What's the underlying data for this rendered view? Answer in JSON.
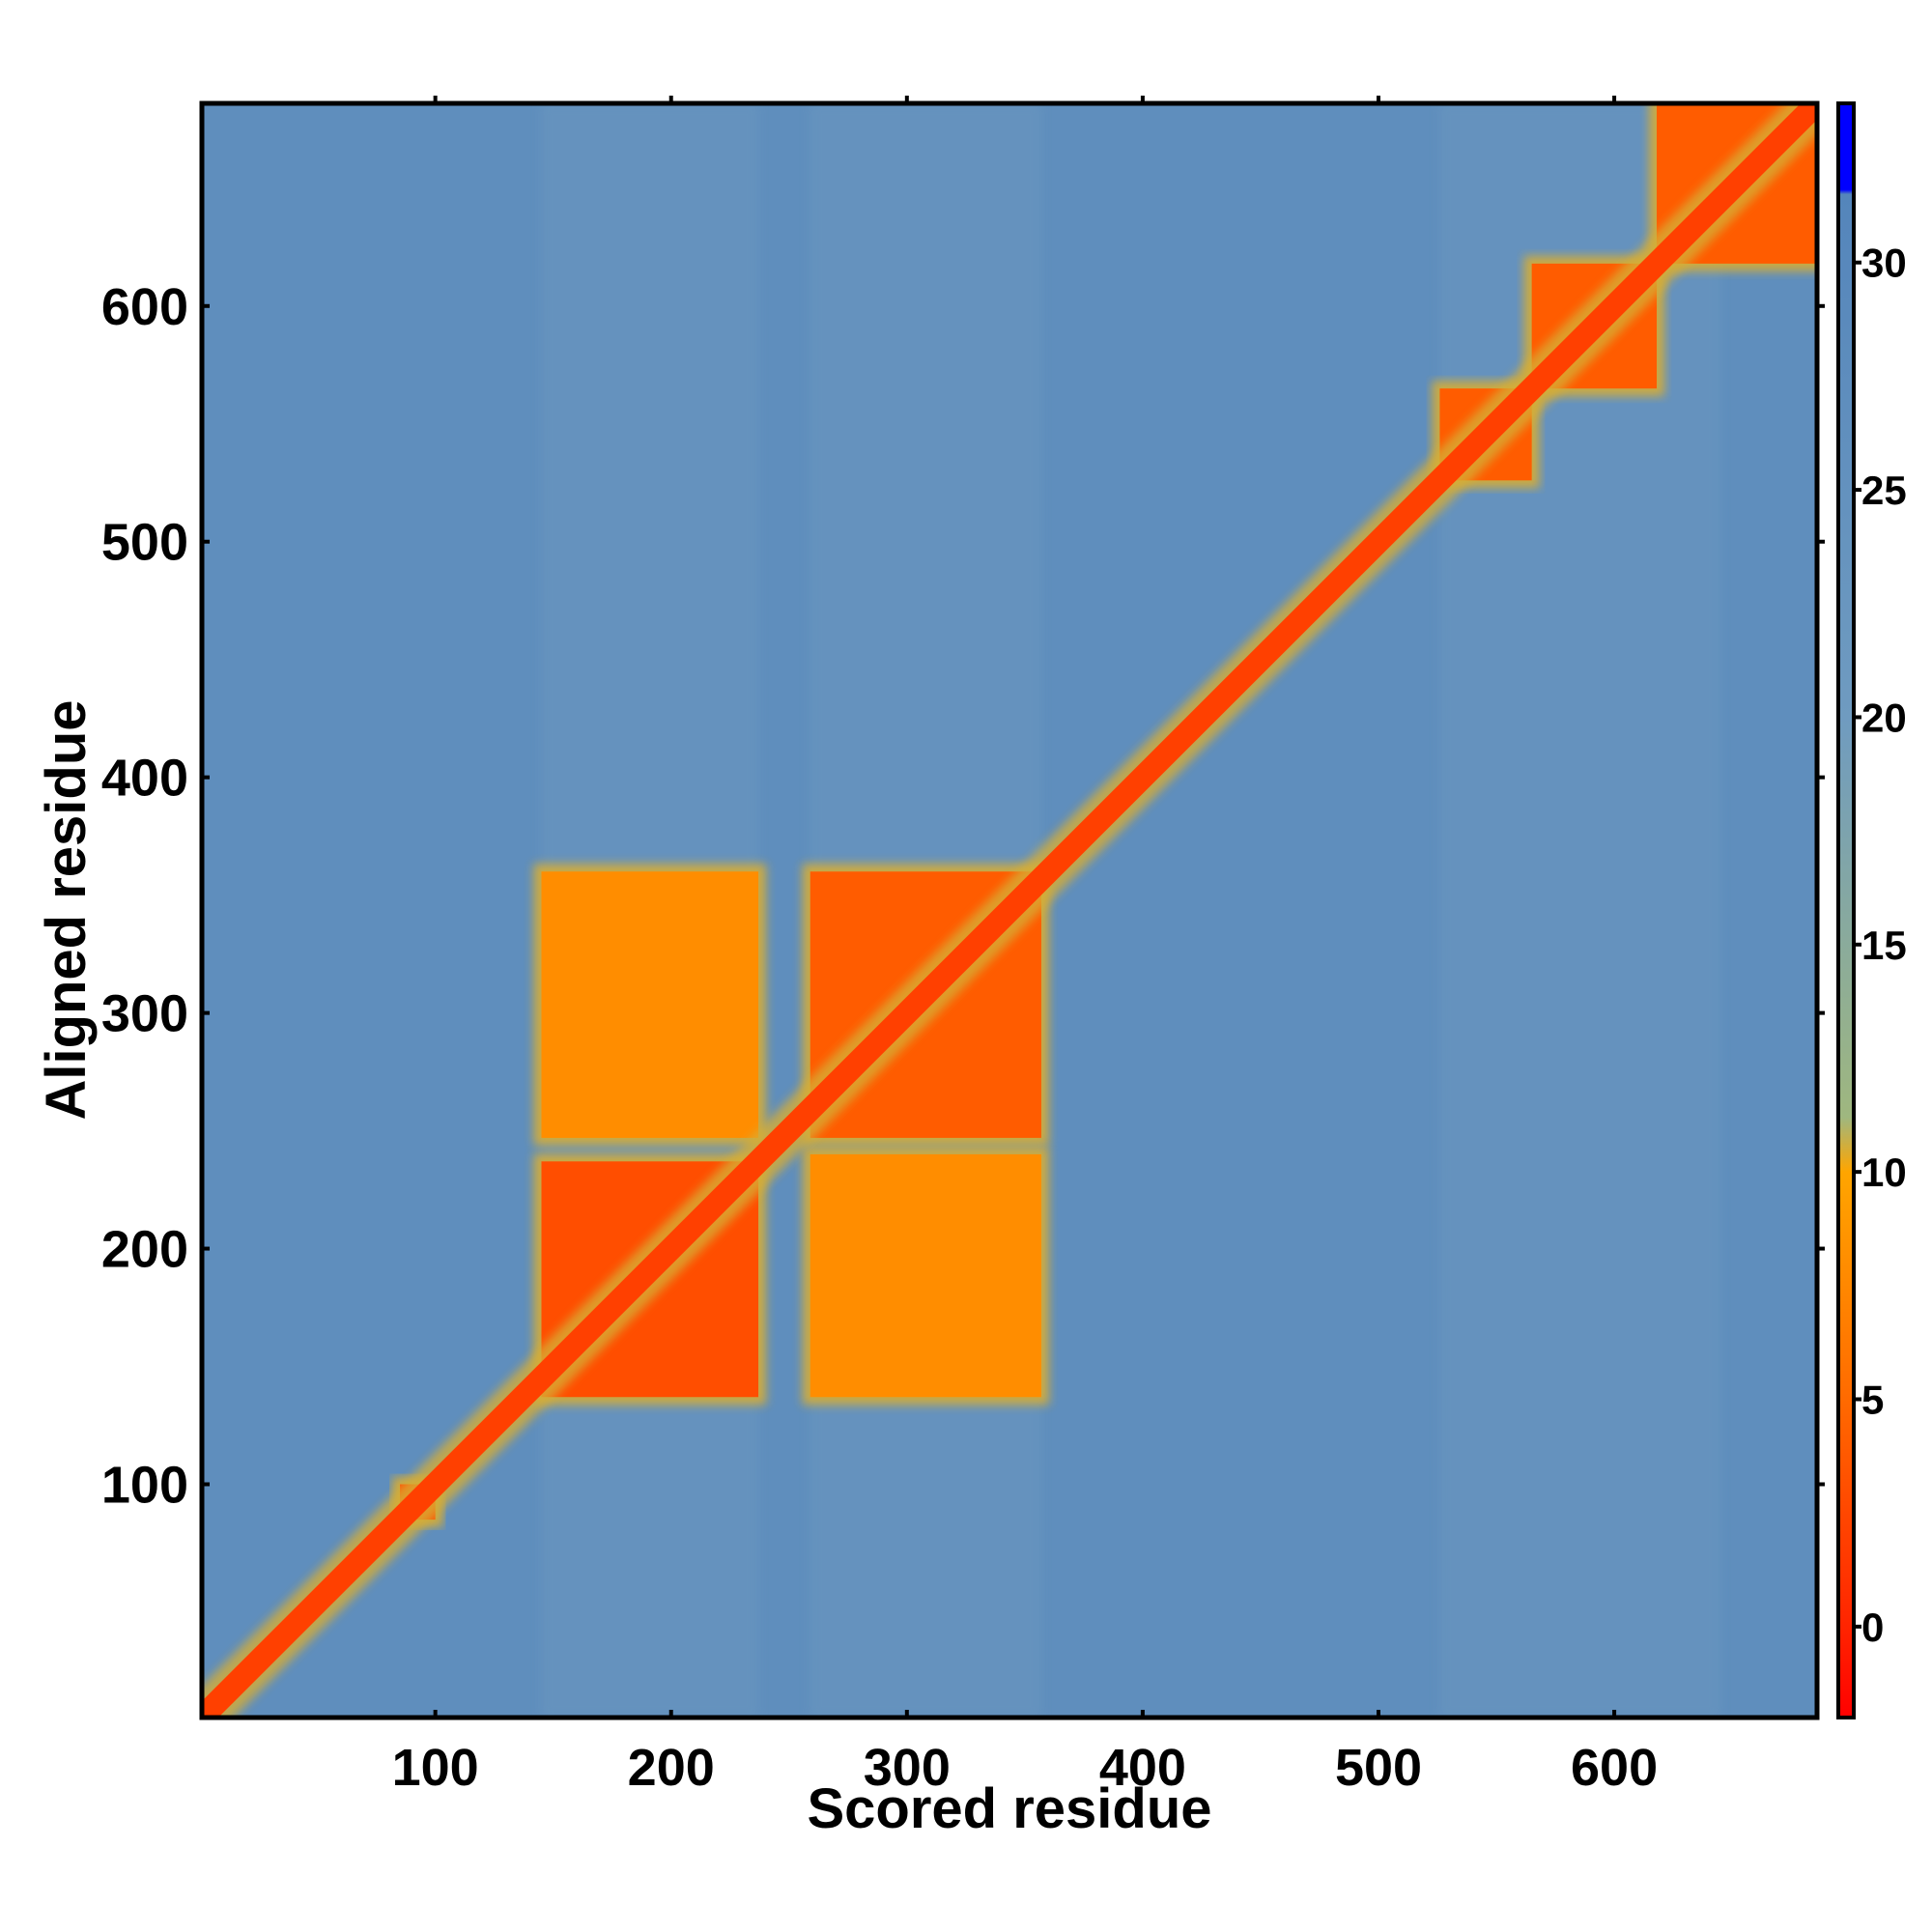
{
  "chart_data": {
    "type": "heatmap",
    "title": "",
    "xlabel": "Scored residue",
    "ylabel": "Aligned residue",
    "xlim": [
      1,
      686
    ],
    "ylim": [
      1,
      686
    ],
    "xticks": [
      100,
      200,
      300,
      400,
      500,
      600
    ],
    "yticks": [
      100,
      200,
      300,
      400,
      500,
      600
    ],
    "colorbar": {
      "ticks": [
        0,
        5,
        10,
        15,
        20,
        25,
        30
      ],
      "range": [
        -2,
        33.5
      ],
      "stops": [
        {
          "value": -2,
          "color": "#ff0000"
        },
        {
          "value": 0,
          "color": "#ff2400"
        },
        {
          "value": 5,
          "color": "#ff6a00"
        },
        {
          "value": 10,
          "color": "#ffa500"
        },
        {
          "value": 11.2,
          "color": "#9fb77f"
        },
        {
          "value": 20,
          "color": "#6f9bc0"
        },
        {
          "value": 31.5,
          "color": "#5485bb"
        },
        {
          "value": 31.6,
          "color": "#0000ff"
        },
        {
          "value": 33.5,
          "color": "#0000ff"
        }
      ]
    },
    "background_value": 27,
    "diagonal_value": 2,
    "ordered_blocks": [
      {
        "x": [
          145,
          237
        ],
        "y": [
          137,
          237
        ],
        "value": 3
      },
      {
        "x": [
          145,
          237
        ],
        "y": [
          247,
          360
        ],
        "value": 8
      },
      {
        "x": [
          259,
          357
        ],
        "y": [
          247,
          360
        ],
        "value": 4
      },
      {
        "x": [
          259,
          357
        ],
        "y": [
          137,
          240
        ],
        "value": 8
      },
      {
        "x": [
          85,
          100
        ],
        "y": [
          85,
          100
        ],
        "value": 3
      },
      {
        "x": [
          526,
          565
        ],
        "y": [
          526,
          565
        ],
        "value": 4
      },
      {
        "x": [
          565,
          618
        ],
        "y": [
          565,
          618
        ],
        "value": 4
      },
      {
        "x": [
          618,
          686
        ],
        "y": [
          618,
          686
        ],
        "value": 4
      }
    ],
    "background_bands": [
      {
        "x": [
          145,
          237
        ],
        "value": 22
      },
      {
        "x": [
          259,
          357
        ],
        "value": 22
      },
      {
        "x": [
          526,
          645
        ],
        "value": 22
      }
    ]
  }
}
